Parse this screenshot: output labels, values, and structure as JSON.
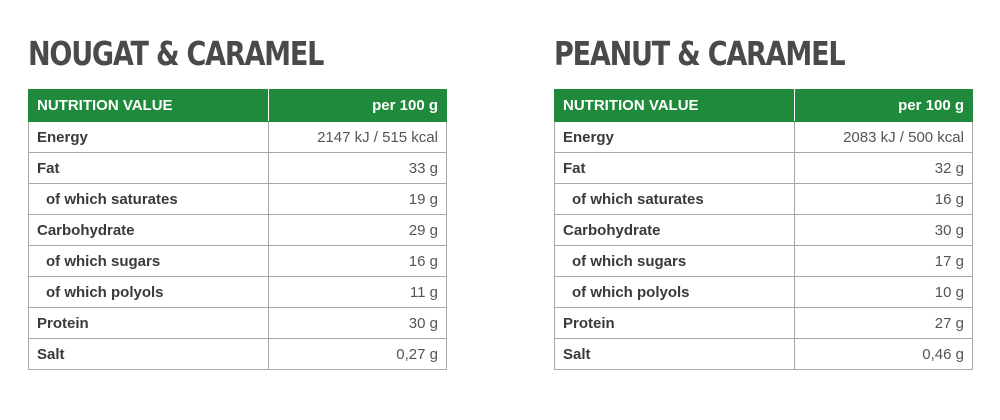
{
  "colors": {
    "header_bg": "#1f8a3c",
    "title_text": "#4a4a4a",
    "border": "#a8a8a8"
  },
  "products": [
    {
      "title": "NOUGAT & CARAMEL",
      "header": {
        "label": "NUTRITION VALUE",
        "unit": "per 100 g"
      },
      "rows": [
        {
          "label": "Energy",
          "value": "2147 kJ / 515 kcal"
        },
        {
          "label": "Fat",
          "value": "33 g"
        },
        {
          "label": "of which saturates",
          "value": "19 g"
        },
        {
          "label": "Carbohydrate",
          "value": "29 g"
        },
        {
          "label": "of which sugars",
          "value": "16 g"
        },
        {
          "label": "of which polyols",
          "value": "11 g"
        },
        {
          "label": "Protein",
          "value": "30 g"
        },
        {
          "label": "Salt",
          "value": "0,27 g"
        }
      ]
    },
    {
      "title": "PEANUT & CARAMEL",
      "header": {
        "label": "NUTRITION VALUE",
        "unit": "per 100 g"
      },
      "rows": [
        {
          "label": "Energy",
          "value": "2083 kJ / 500 kcal"
        },
        {
          "label": "Fat",
          "value": "32 g"
        },
        {
          "label": "of which saturates",
          "value": "16 g"
        },
        {
          "label": "Carbohydrate",
          "value": "30 g"
        },
        {
          "label": "of which sugars",
          "value": "17 g"
        },
        {
          "label": "of which polyols",
          "value": "10 g"
        },
        {
          "label": "Protein",
          "value": "27 g"
        },
        {
          "label": "Salt",
          "value": "0,46 g"
        }
      ]
    }
  ]
}
